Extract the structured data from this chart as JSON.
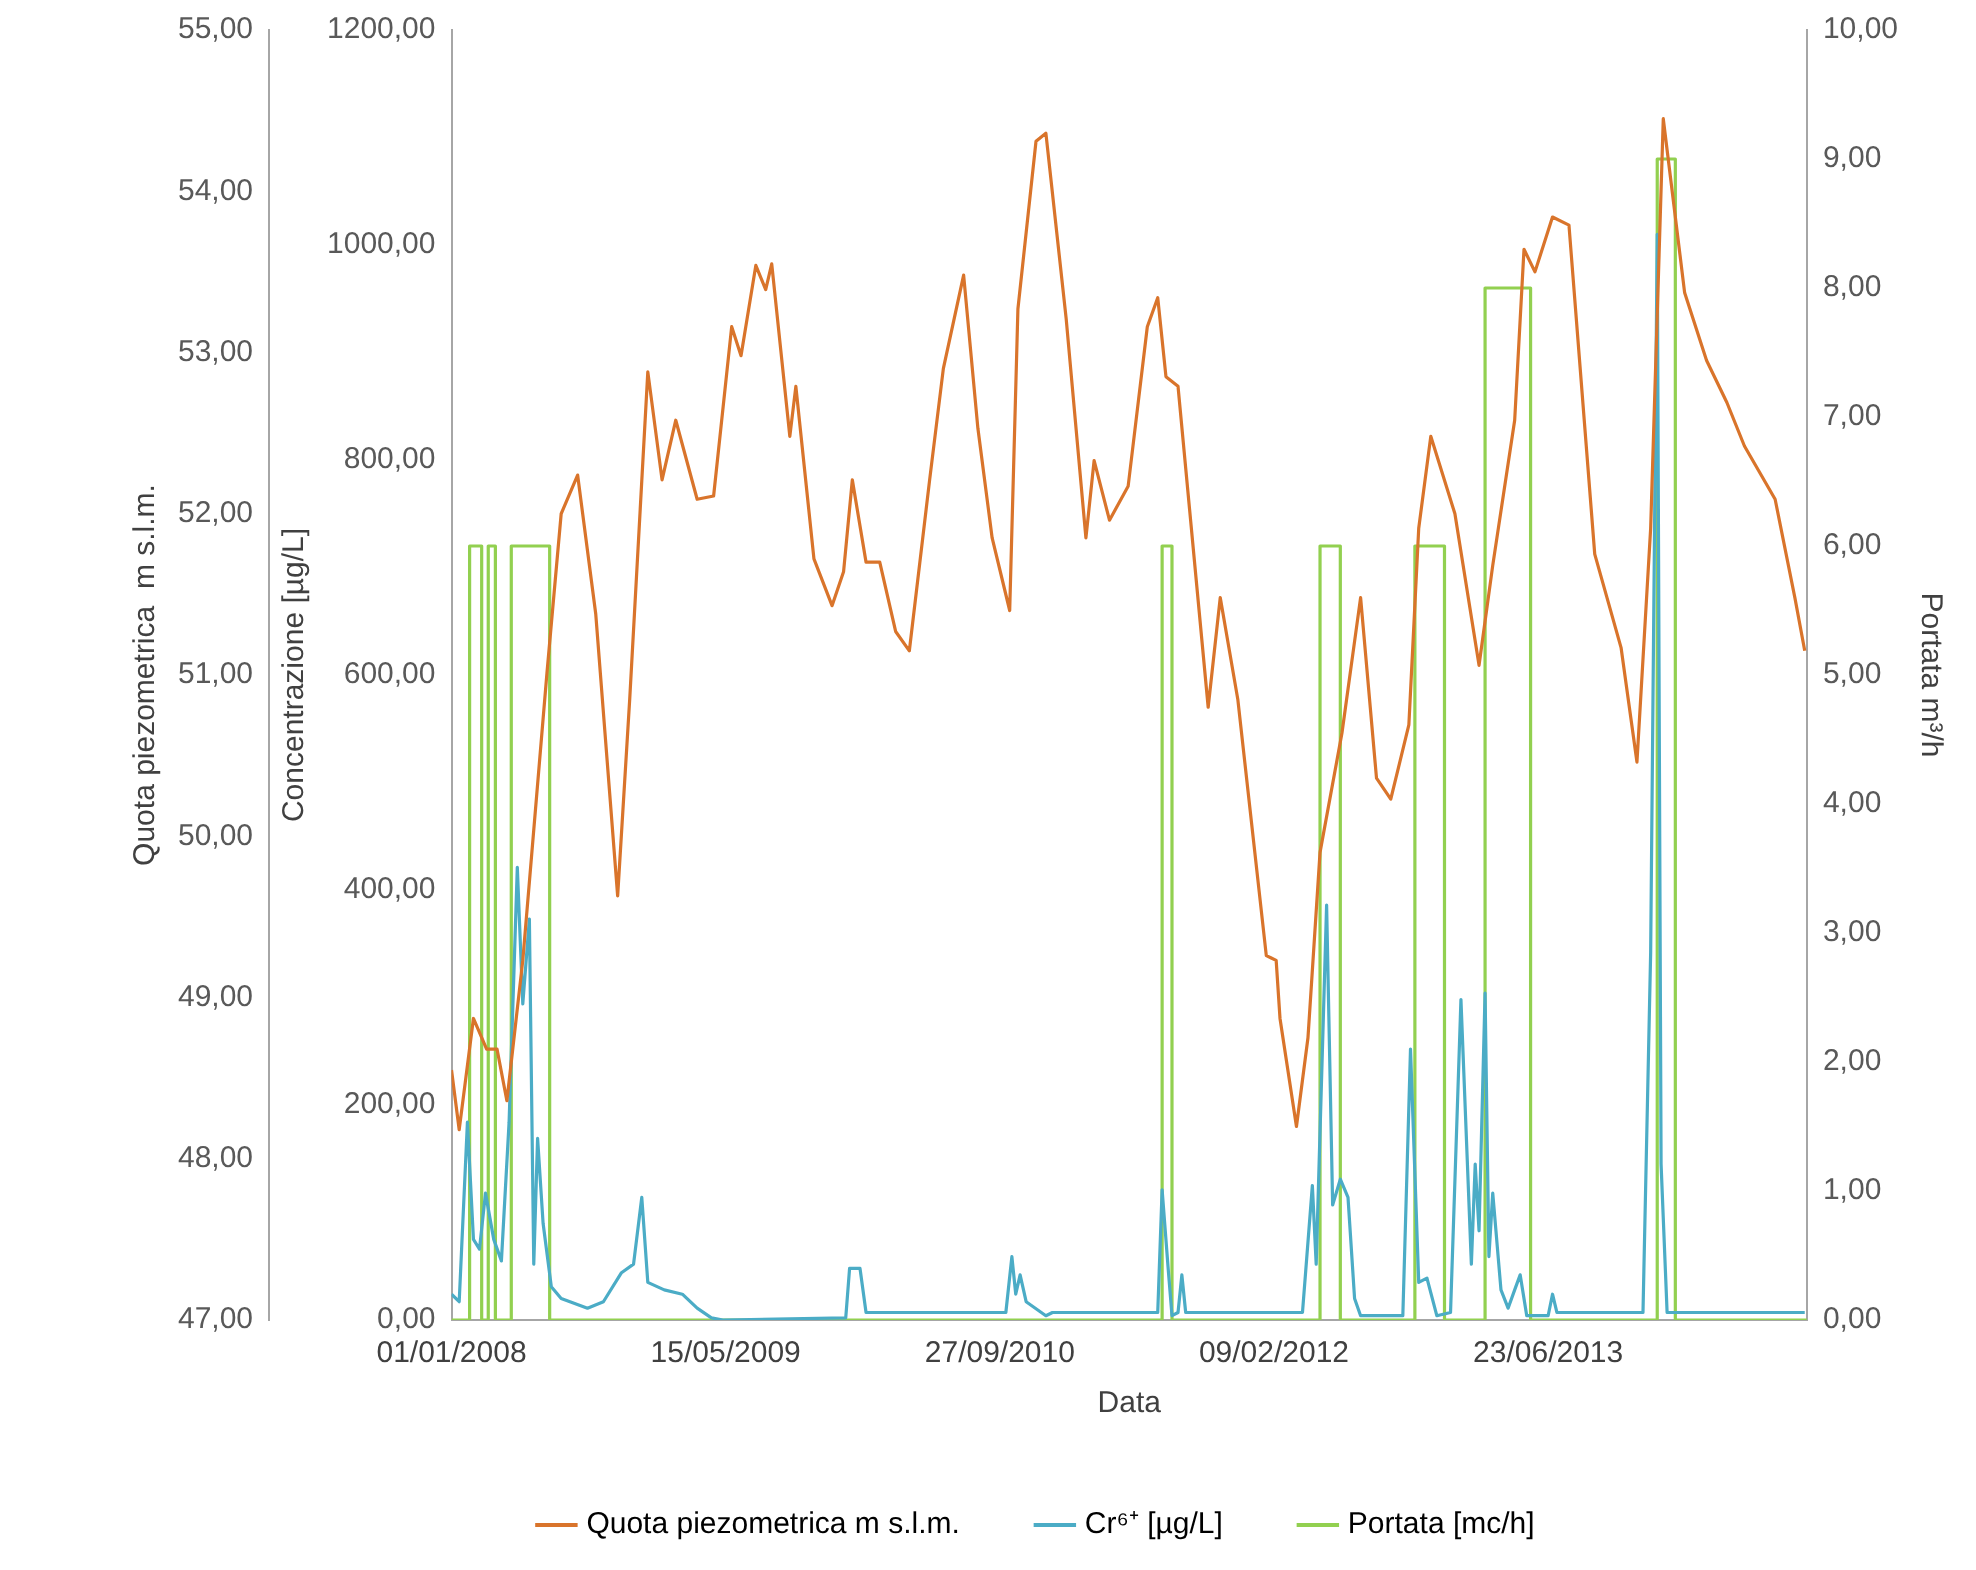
{
  "chart_data": {
    "type": "line",
    "xlabel": "Data",
    "ylabel": "Concentrazione [µg/L]",
    "y2label": "Portata m³/h",
    "y3label": "Quota piezometrica  m s.l.m.",
    "xlim": [
      "2008-01-01",
      "2014-10-08"
    ],
    "xticks": [
      {
        "value": "2008-01-01",
        "label": "01/01/2008"
      },
      {
        "value": "2009-05-15",
        "label": "15/05/2009"
      },
      {
        "value": "2010-09-27",
        "label": "27/09/2010"
      },
      {
        "value": "2012-02-09",
        "label": "09/02/2012"
      },
      {
        "value": "2013-06-23",
        "label": "23/06/2013"
      }
    ],
    "ylim": [
      0,
      1200
    ],
    "yticks": [
      {
        "value": 0,
        "label": "0,00"
      },
      {
        "value": 200,
        "label": "200,00"
      },
      {
        "value": 400,
        "label": "400,00"
      },
      {
        "value": 600,
        "label": "600,00"
      },
      {
        "value": 800,
        "label": "800,00"
      },
      {
        "value": 1000,
        "label": "1000,00"
      },
      {
        "value": 1200,
        "label": "1200,00"
      }
    ],
    "y2lim": [
      0,
      10
    ],
    "y2ticks": [
      {
        "value": 0,
        "label": "0,00"
      },
      {
        "value": 1,
        "label": "1,00"
      },
      {
        "value": 2,
        "label": "2,00"
      },
      {
        "value": 3,
        "label": "3,00"
      },
      {
        "value": 4,
        "label": "4,00"
      },
      {
        "value": 5,
        "label": "5,00"
      },
      {
        "value": 6,
        "label": "6,00"
      },
      {
        "value": 7,
        "label": "7,00"
      },
      {
        "value": 8,
        "label": "8,00"
      },
      {
        "value": 9,
        "label": "9,00"
      },
      {
        "value": 10,
        "label": "10,00"
      }
    ],
    "y3lim": [
      47,
      55
    ],
    "y3ticks": [
      {
        "value": 47,
        "label": "47,00"
      },
      {
        "value": 48,
        "label": "48,00"
      },
      {
        "value": 49,
        "label": "49,00"
      },
      {
        "value": 50,
        "label": "50,00"
      },
      {
        "value": 51,
        "label": "51,00"
      },
      {
        "value": 52,
        "label": "52,00"
      },
      {
        "value": 53,
        "label": "53,00"
      },
      {
        "value": 54,
        "label": "54,00"
      },
      {
        "value": 55,
        "label": "55,00"
      }
    ],
    "grid": false,
    "legend": "bottom",
    "marker": "none",
    "line_style": "solid",
    "series": [
      {
        "name": "Quota piezometrica m s.l.m.",
        "color": "#d9742b",
        "axis": "y3",
        "x": [
          "2008-01-01",
          "2008-01-15",
          "2008-02-10",
          "2008-03-05",
          "2008-03-24",
          "2008-04-11",
          "2008-05-10",
          "2008-06-23",
          "2008-07-19",
          "2008-08-18",
          "2008-09-20",
          "2008-10-30",
          "2008-11-21",
          "2008-12-24",
          "2009-01-19",
          "2009-02-13",
          "2009-03-24",
          "2009-04-23",
          "2009-05-26",
          "2009-06-12",
          "2009-07-09",
          "2009-07-27",
          "2009-08-07",
          "2009-09-09",
          "2009-09-20",
          "2009-10-23",
          "2009-11-25",
          "2009-12-16",
          "2010-01-01",
          "2010-01-26",
          "2010-02-20",
          "2010-03-21",
          "2010-04-15",
          "2010-05-22",
          "2010-06-16",
          "2010-07-23",
          "2010-08-18",
          "2010-09-13",
          "2010-10-15",
          "2010-10-30",
          "2010-12-02",
          "2010-12-20",
          "2011-01-26",
          "2011-03-03",
          "2011-03-18",
          "2011-04-15",
          "2011-05-19",
          "2011-06-23",
          "2011-07-12",
          "2011-07-27",
          "2011-08-18",
          "2011-10-12",
          "2011-11-03",
          "2011-12-05",
          "2012-01-26",
          "2012-02-13",
          "2012-02-20",
          "2012-03-21",
          "2012-04-11",
          "2012-05-03",
          "2012-06-12",
          "2012-07-16",
          "2012-08-14",
          "2012-09-09",
          "2012-10-12",
          "2012-10-30",
          "2012-11-21",
          "2013-01-04",
          "2013-02-17",
          "2013-03-14",
          "2013-04-23",
          "2013-05-10",
          "2013-05-30",
          "2013-07-01",
          "2013-07-31",
          "2013-09-16",
          "2013-11-03",
          "2013-12-02",
          "2013-12-27",
          "2014-01-19",
          "2014-02-27",
          "2014-04-08",
          "2014-05-15",
          "2014-06-16",
          "2014-08-11",
          "2014-09-16",
          "2014-10-04"
        ],
        "values": [
          48.55,
          48.18,
          48.87,
          48.68,
          48.68,
          48.36,
          49.23,
          51.01,
          52.0,
          52.24,
          51.38,
          49.63,
          50.85,
          52.88,
          52.21,
          52.58,
          52.09,
          52.11,
          53.16,
          52.98,
          53.54,
          53.39,
          53.55,
          52.48,
          52.79,
          51.72,
          51.43,
          51.64,
          52.21,
          51.7,
          51.7,
          51.27,
          51.15,
          52.21,
          52.9,
          53.48,
          52.53,
          51.85,
          51.4,
          53.27,
          54.31,
          54.36,
          53.21,
          51.85,
          52.33,
          51.96,
          52.17,
          53.16,
          53.34,
          52.85,
          52.79,
          50.8,
          51.48,
          50.85,
          49.26,
          49.23,
          48.87,
          48.2,
          48.75,
          49.9,
          50.64,
          51.48,
          50.36,
          50.23,
          50.69,
          51.91,
          52.48,
          52.0,
          51.06,
          51.68,
          52.58,
          53.64,
          53.5,
          53.84,
          53.79,
          51.75,
          51.17,
          50.46,
          51.91,
          54.45,
          53.37,
          52.95,
          52.69,
          52.42,
          52.09,
          51.48,
          51.15
        ]
      },
      {
        "name": "Cr⁶⁺ [µg/L]",
        "color": "#4bacc6",
        "x": [
          "2008-01-01",
          "2008-01-15",
          "2008-01-30",
          "2008-02-10",
          "2008-02-21",
          "2008-03-03",
          "2008-03-18",
          "2008-04-01",
          "2008-04-15",
          "2008-04-30",
          "2008-05-10",
          "2008-05-22",
          "2008-05-30",
          "2008-06-06",
          "2008-06-16",
          "2008-07-01",
          "2008-07-19",
          "2008-09-05",
          "2008-10-04",
          "2008-11-06",
          "2008-11-28",
          "2008-12-13",
          "2008-12-24",
          "2009-01-23",
          "2009-02-25",
          "2009-03-24",
          "2009-04-19",
          "2009-05-10",
          "2009-12-20",
          "2009-12-27",
          "2010-01-15",
          "2010-01-26",
          "2010-10-08",
          "2010-10-19",
          "2010-10-26",
          "2010-11-03",
          "2010-11-14",
          "2010-12-20",
          "2011-01-01",
          "2011-07-12",
          "2011-07-20",
          "2011-07-31",
          "2011-08-07",
          "2011-08-18",
          "2011-08-25",
          "2011-09-01",
          "2012-04-01",
          "2012-04-19",
          "2012-04-26",
          "2012-05-15",
          "2012-05-26",
          "2012-06-09",
          "2012-06-23",
          "2012-07-05",
          "2012-07-16",
          "2012-10-01",
          "2012-10-15",
          "2012-10-30",
          "2012-11-14",
          "2012-12-02",
          "2012-12-27",
          "2013-01-15",
          "2013-02-03",
          "2013-02-10",
          "2013-02-17",
          "2013-02-28",
          "2013-03-07",
          "2013-03-14",
          "2013-03-29",
          "2013-04-11",
          "2013-04-23",
          "2013-05-03",
          "2013-05-15",
          "2013-06-23",
          "2013-07-01",
          "2013-07-09",
          "2013-12-13",
          "2013-12-27",
          "2014-01-08",
          "2014-01-15",
          "2014-01-26",
          "2014-10-04"
        ],
        "values": [
          24,
          17,
          184,
          75,
          66,
          118,
          75,
          55,
          184,
          421,
          294,
          373,
          52,
          169,
          90,
          31,
          20,
          11,
          17,
          44,
          52,
          114,
          35,
          28,
          24,
          11,
          2,
          0,
          2,
          48,
          48,
          7,
          7,
          59,
          24,
          42,
          17,
          4,
          7,
          7,
          121,
          48,
          4,
          7,
          42,
          7,
          7,
          125,
          52,
          386,
          107,
          131,
          114,
          20,
          4,
          4,
          252,
          35,
          39,
          4,
          7,
          298,
          52,
          145,
          83,
          304,
          59,
          118,
          28,
          11,
          28,
          42,
          4,
          4,
          24,
          7,
          7,
          342,
          1010,
          145,
          7,
          7
        ]
      },
      {
        "name": "Portata [mc/h]",
        "color": "#92d050",
        "axis": "y2",
        "type": "step",
        "x": [
          "2008-01-01",
          "2008-02-03",
          "2008-02-25",
          "2008-03-08",
          "2008-03-21",
          "2008-04-19",
          "2008-06-28",
          "2011-07-20",
          "2011-08-07",
          "2012-05-03",
          "2012-06-09",
          "2012-10-23",
          "2012-12-16",
          "2013-02-28",
          "2013-05-22",
          "2014-01-08",
          "2014-02-10",
          "2014-10-08"
        ],
        "values": [
          0,
          6,
          0,
          6,
          0,
          6,
          0,
          6,
          0,
          6,
          0,
          6,
          0,
          8,
          0,
          9,
          0,
          0
        ]
      }
    ]
  }
}
